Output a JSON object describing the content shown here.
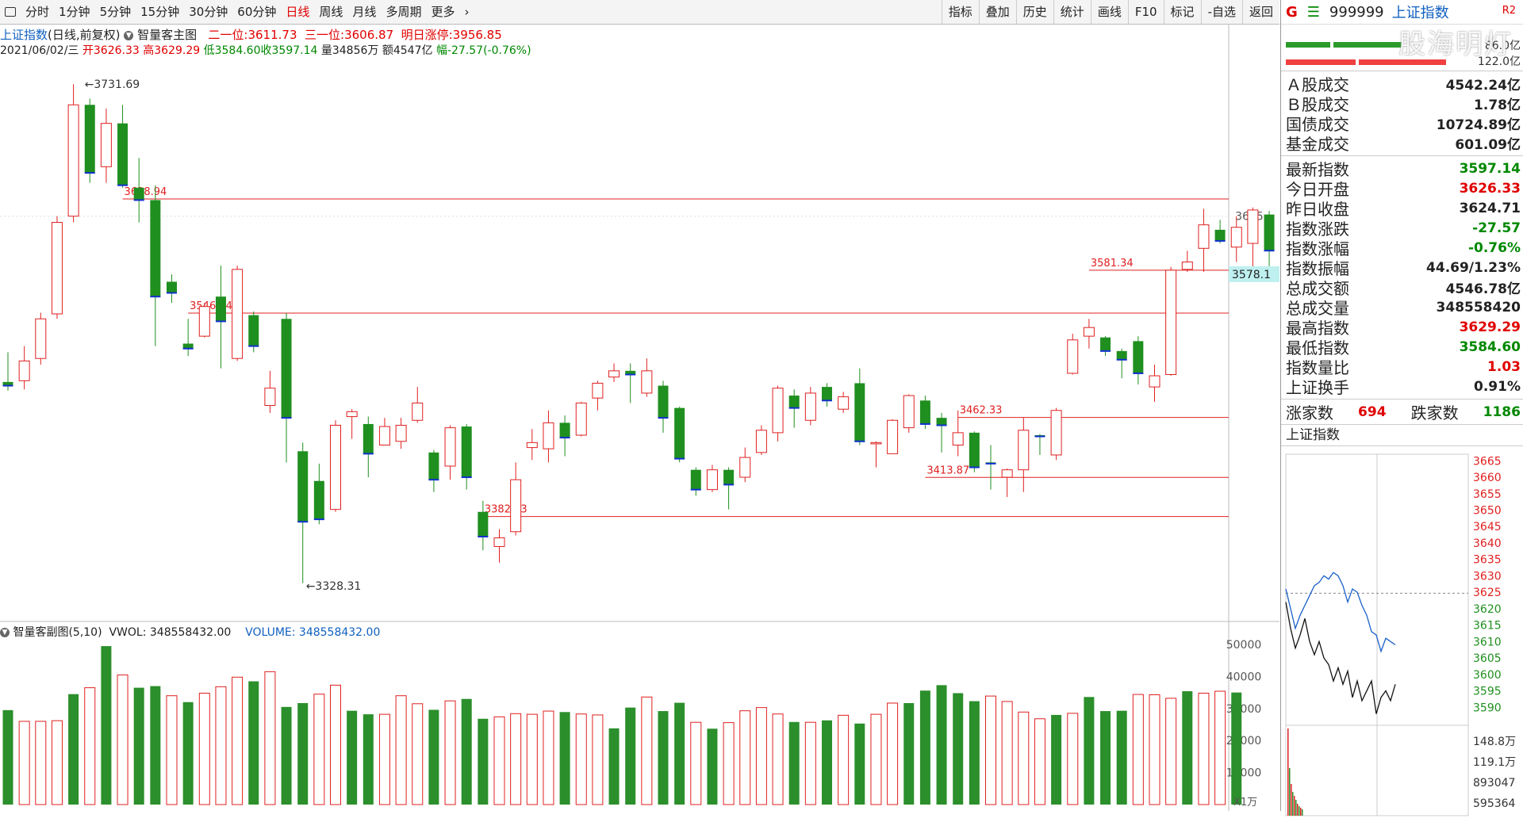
{
  "toolbar": {
    "periods": [
      "分时",
      "1分钟",
      "5分钟",
      "15分钟",
      "30分钟",
      "60分钟",
      "日线",
      "周线",
      "月线",
      "多周期",
      "更多"
    ],
    "active_period": "日线",
    "right_items": [
      "指标",
      "叠加",
      "历史",
      "统计",
      "画线",
      "F10",
      "标记",
      "-自选",
      "返回"
    ]
  },
  "info": {
    "index_name": "上证指数",
    "mode": "(日线,前复权)",
    "main_indicator": "智量客主图",
    "level2_label": "二一位:",
    "level2": "3611.73",
    "level3_label": "三一位:",
    "level3": "3606.87",
    "limit_label": "明日涨停:",
    "limit": "3956.85",
    "date": "2021/06/02/三",
    "open_label": "开",
    "open": "3626.33",
    "high_label": "高",
    "high": "3629.29",
    "low_label": "低",
    "low": "3584.60",
    "close_label": "收",
    "close": "3597.14",
    "vol_label": "量",
    "vol": "34856万",
    "amt_label": "额",
    "amt": "4547亿",
    "chg_label": "幅",
    "chg": "-27.57(-0.76%)"
  },
  "sub": {
    "title": "智量客副图(5,10)",
    "vwol": "VWOL: 348558432.00",
    "volume": "VOLUME: 348558432.00",
    "unit": "X1万"
  },
  "chart_data": [
    {
      "type": "candlestick",
      "title": "",
      "ylim": [
        3300,
        3760
      ],
      "price_axis_label": "3625",
      "current_price_tag": "3578.1",
      "annotations": {
        "high_mark": "3731.69",
        "low_mark": "3328.31",
        "levels": [
          {
            "label": "3638.94",
            "value": 3638.94
          },
          {
            "label": "3546.64",
            "value": 3546.64
          },
          {
            "label": "3462.33",
            "value": 3462.33
          },
          {
            "label": "3413.87",
            "value": 3413.87
          },
          {
            "label": "3382.23",
            "value": 3382.23
          },
          {
            "label": "3581.34",
            "value": 3581.34
          }
        ]
      },
      "ohlc": [
        [
          3491,
          3488,
          3484,
          3515
        ],
        [
          3492,
          3508,
          3485,
          3520
        ],
        [
          3510,
          3542,
          3505,
          3547
        ],
        [
          3546,
          3620,
          3542,
          3625
        ],
        [
          3625,
          3715,
          3620,
          3731.69
        ],
        [
          3715,
          3660,
          3652,
          3720
        ],
        [
          3665,
          3700,
          3652,
          3712
        ],
        [
          3700,
          3650,
          3648,
          3715
        ],
        [
          3648,
          3638,
          3620,
          3672
        ],
        [
          3638,
          3560,
          3520,
          3650
        ],
        [
          3572,
          3563,
          3555,
          3578
        ],
        [
          3522,
          3518,
          3512,
          3542
        ],
        [
          3528,
          3552,
          3527,
          3555
        ],
        [
          3560,
          3540,
          3502,
          3585
        ],
        [
          3510,
          3582,
          3508,
          3585
        ],
        [
          3545,
          3520,
          3515,
          3548
        ],
        [
          3472,
          3486,
          3466,
          3500
        ],
        [
          3542,
          3462,
          3426,
          3546.64
        ],
        [
          3435,
          3378,
          3328.31,
          3442
        ],
        [
          3411,
          3380,
          3376,
          3425
        ],
        [
          3388,
          3456,
          3386,
          3460
        ],
        [
          3463,
          3467,
          3445,
          3469
        ],
        [
          3457,
          3433,
          3414,
          3463
        ],
        [
          3440,
          3455,
          3440,
          3462
        ],
        [
          3443,
          3456,
          3437,
          3462
        ],
        [
          3460,
          3474,
          3458,
          3487
        ],
        [
          3434,
          3412,
          3402,
          3436
        ],
        [
          3423,
          3454,
          3412,
          3456
        ],
        [
          3455,
          3414,
          3404,
          3457
        ],
        [
          3386,
          3366,
          3355,
          3395
        ],
        [
          3358,
          3365,
          3345,
          3372
        ],
        [
          3370,
          3412,
          3367,
          3426
        ],
        [
          3438,
          3442,
          3428,
          3453
        ],
        [
          3437,
          3458,
          3426,
          3468
        ],
        [
          3458,
          3446,
          3431,
          3464
        ],
        [
          3448,
          3474,
          3447,
          3475
        ],
        [
          3478,
          3490,
          3468,
          3492
        ],
        [
          3495,
          3500,
          3491,
          3506
        ],
        [
          3500,
          3497,
          3474,
          3506
        ],
        [
          3482,
          3500,
          3479,
          3510
        ],
        [
          3488,
          3462,
          3450,
          3492
        ],
        [
          3470,
          3429,
          3426,
          3471
        ],
        [
          3420,
          3404,
          3399,
          3422
        ],
        [
          3404,
          3420,
          3402,
          3424
        ],
        [
          3420,
          3408,
          3388,
          3422
        ],
        [
          3414,
          3430,
          3410,
          3438
        ],
        [
          3434,
          3452,
          3432,
          3456
        ],
        [
          3450,
          3486,
          3443,
          3488
        ],
        [
          3480,
          3470,
          3454,
          3485
        ],
        [
          3460,
          3482,
          3456,
          3487
        ],
        [
          3487,
          3476,
          3471,
          3490
        ],
        [
          3469,
          3479,
          3466,
          3483
        ],
        [
          3490,
          3443,
          3440,
          3502
        ],
        [
          3441,
          3442,
          3422,
          3443
        ],
        [
          3433,
          3460,
          3434,
          3461
        ],
        [
          3454,
          3480,
          3450,
          3481
        ],
        [
          3476,
          3457,
          3453,
          3480
        ],
        [
          3462,
          3456,
          3434,
          3466
        ],
        [
          3440,
          3450,
          3431,
          3468
        ],
        [
          3450,
          3422,
          3418,
          3451
        ],
        [
          3426,
          3425,
          3404,
          3440
        ],
        [
          3414,
          3420,
          3398,
          3421
        ],
        [
          3420,
          3452,
          3402,
          3462.33
        ],
        [
          3448,
          3447,
          3432,
          3449
        ],
        [
          3432,
          3468,
          3428,
          3470
        ],
        [
          3498,
          3525,
          3497,
          3530
        ],
        [
          3528,
          3535,
          3518,
          3542
        ],
        [
          3527,
          3516,
          3512,
          3528
        ],
        [
          3516,
          3509,
          3494,
          3518
        ],
        [
          3524,
          3498,
          3489,
          3528
        ],
        [
          3487,
          3496,
          3475,
          3505
        ],
        [
          3497,
          3581.34,
          3496,
          3584
        ],
        [
          3582,
          3588,
          3580,
          3597
        ],
        [
          3599,
          3618,
          3580,
          3631
        ],
        [
          3614,
          3605,
          3603,
          3622
        ],
        [
          3600,
          3616,
          3588,
          3625
        ],
        [
          3603,
          3630,
          3581,
          3632
        ],
        [
          3626.33,
          3597.14,
          3584.6,
          3629.29
        ]
      ]
    },
    {
      "type": "bar",
      "title": "",
      "ylim": [
        0,
        52000
      ],
      "y_ticks": [
        "50000",
        "40000",
        "30000",
        "20000",
        "10000"
      ],
      "values": [
        29500,
        26000,
        26000,
        26200,
        34500,
        36500,
        49500,
        40500,
        36500,
        37000,
        34000,
        32000,
        34800,
        36800,
        39800,
        38500,
        41500,
        30500,
        31700,
        34500,
        37300,
        29300,
        28200,
        28200,
        34000,
        31500,
        29600,
        32400,
        33000,
        26800,
        27400,
        28400,
        28200,
        29200,
        28900,
        28300,
        28000,
        23800,
        30300,
        33600,
        29200,
        31800,
        25700,
        23700,
        25600,
        29300,
        30300,
        28300,
        25800,
        25700,
        26300,
        27900,
        25300,
        28200,
        31700,
        31700,
        35600,
        37300,
        34800,
        32300,
        33900,
        32200,
        28900,
        26800,
        28000,
        28500,
        33600,
        29200,
        29300,
        34400,
        34300,
        33200,
        35400,
        34800,
        35400,
        35000
      ],
      "up_flags": [
        false,
        true,
        true,
        true,
        false,
        true,
        false,
        true,
        false,
        false,
        true,
        false,
        true,
        true,
        true,
        false,
        true,
        false,
        false,
        true,
        true,
        false,
        false,
        true,
        true,
        true,
        false,
        true,
        false,
        false,
        true,
        true,
        true,
        true,
        false,
        true,
        true,
        false,
        false,
        true,
        false,
        false,
        true,
        false,
        true,
        true,
        true,
        true,
        false,
        true,
        false,
        true,
        false,
        true,
        true,
        false,
        false,
        false,
        false,
        false,
        true,
        true,
        true,
        true,
        false,
        true,
        false,
        false,
        false,
        true,
        true,
        true,
        false,
        true,
        true,
        false
      ]
    },
    {
      "type": "line",
      "title": "上证指数",
      "ylim": [
        3585,
        3667
      ],
      "y_ticks": [
        "3665",
        "3660",
        "3655",
        "3650",
        "3645",
        "3640",
        "3635",
        "3630",
        "3625",
        "3620",
        "3615",
        "3610",
        "3605",
        "3600",
        "3595",
        "3590"
      ],
      "vol_ticks": [
        "148.8万",
        "119.1万",
        "893047",
        "595364"
      ],
      "series": [
        {
          "color": "#1a5fc8",
          "values": [
            3626,
            3620,
            3614,
            3618,
            3621,
            3624,
            3627,
            3628,
            3630,
            3629,
            3631,
            3630,
            3627,
            3622,
            3626,
            3625,
            3621,
            3618,
            3613,
            3612,
            3607,
            3611,
            3610,
            3609
          ]
        },
        {
          "color": "#111111",
          "values": [
            3622,
            3614,
            3608,
            3612,
            3617,
            3610,
            3606,
            3610,
            3605,
            3603,
            3598,
            3602,
            3597,
            3601,
            3593,
            3598,
            3592,
            3595,
            3598,
            3588,
            3593,
            3595,
            3592,
            3597
          ]
        }
      ]
    }
  ],
  "right_panel": {
    "g": "G",
    "eq": "☰",
    "code": "999999",
    "name": "上证指数",
    "switch": "R2",
    "bar_val1": "86.0亿",
    "bar_val2": "122.0亿",
    "turnover": [
      {
        "label": "Ａ股成交",
        "value": "4542.24亿"
      },
      {
        "label": "Ｂ股成交",
        "value": "1.78亿"
      },
      {
        "label": "国债成交",
        "value": "10724.89亿"
      },
      {
        "label": "基金成交",
        "value": "601.09亿"
      }
    ],
    "stats": [
      {
        "label": "最新指数",
        "value": "3597.14",
        "color": "#008800"
      },
      {
        "label": "今日开盘",
        "value": "3626.33",
        "color": "#e00000"
      },
      {
        "label": "昨日收盘",
        "value": "3624.71",
        "color": "#222222"
      },
      {
        "label": "指数涨跌",
        "value": "-27.57",
        "color": "#008800"
      },
      {
        "label": "指数涨幅",
        "value": "-0.76%",
        "color": "#008800"
      },
      {
        "label": "指数振幅",
        "value": "44.69/1.23%",
        "color": "#222222"
      },
      {
        "label": "总成交额",
        "value": "4546.78亿",
        "color": "#222222"
      },
      {
        "label": "总成交量",
        "value": "348558420",
        "color": "#222222"
      },
      {
        "label": "最高指数",
        "value": "3629.29",
        "color": "#e00000"
      },
      {
        "label": "最低指数",
        "value": "3584.60",
        "color": "#008800"
      },
      {
        "label": "指数量比",
        "value": "1.03",
        "color": "#e00000"
      },
      {
        "label": "上证换手",
        "value": "0.91%",
        "color": "#222222"
      }
    ],
    "adv_label": "涨家数",
    "adv": "694",
    "dec_label": "跌家数",
    "dec": "1186",
    "watermark": "股海明灯"
  }
}
